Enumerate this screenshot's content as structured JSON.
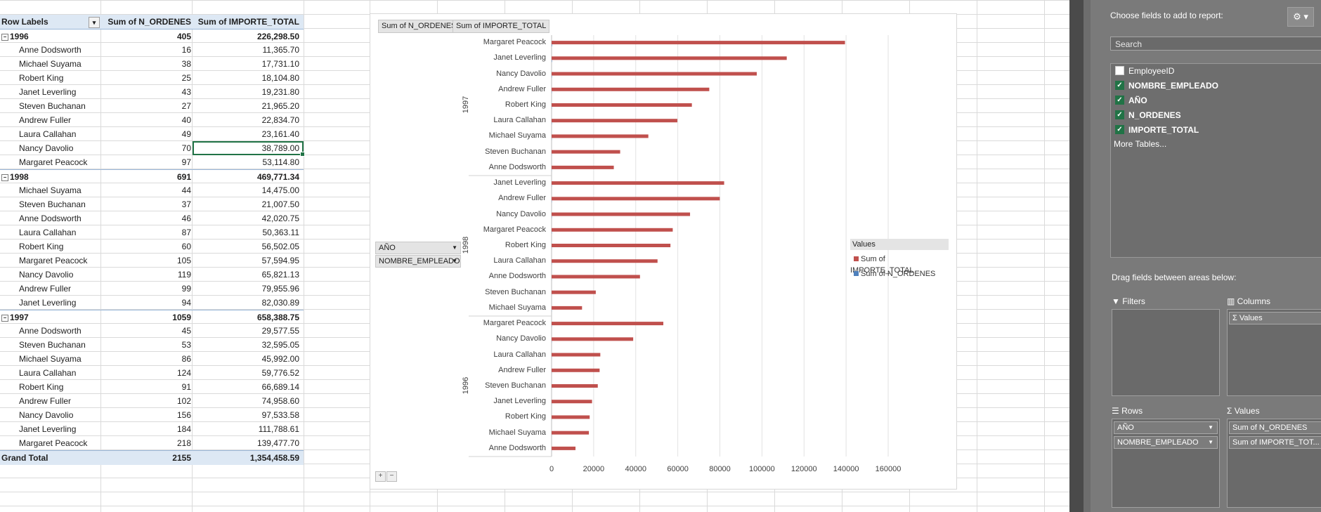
{
  "pivot": {
    "headers": {
      "row_labels": "Row Labels",
      "col1": "Sum of N_ORDENES",
      "col2": "Sum of IMPORTE_TOTAL"
    },
    "rows": [
      {
        "kind": "year",
        "label": "1996",
        "n": "405",
        "importe": "226,298.50"
      },
      {
        "kind": "item",
        "label": "Anne Dodsworth",
        "n": "16",
        "importe": "11,365.70"
      },
      {
        "kind": "item",
        "label": "Michael Suyama",
        "n": "38",
        "importe": "17,731.10"
      },
      {
        "kind": "item",
        "label": "Robert King",
        "n": "25",
        "importe": "18,104.80"
      },
      {
        "kind": "item",
        "label": "Janet Leverling",
        "n": "43",
        "importe": "19,231.80"
      },
      {
        "kind": "item",
        "label": "Steven Buchanan",
        "n": "27",
        "importe": "21,965.20"
      },
      {
        "kind": "item",
        "label": "Andrew Fuller",
        "n": "40",
        "importe": "22,834.70"
      },
      {
        "kind": "item",
        "label": "Laura Callahan",
        "n": "49",
        "importe": "23,161.40"
      },
      {
        "kind": "item",
        "label": "Nancy Davolio",
        "n": "70",
        "importe": "38,789.00"
      },
      {
        "kind": "item",
        "label": "Margaret Peacock",
        "n": "97",
        "importe": "53,114.80"
      },
      {
        "kind": "year",
        "label": "1998",
        "n": "691",
        "importe": "469,771.34"
      },
      {
        "kind": "item",
        "label": "Michael Suyama",
        "n": "44",
        "importe": "14,475.00"
      },
      {
        "kind": "item",
        "label": "Steven Buchanan",
        "n": "37",
        "importe": "21,007.50"
      },
      {
        "kind": "item",
        "label": "Anne Dodsworth",
        "n": "46",
        "importe": "42,020.75"
      },
      {
        "kind": "item",
        "label": "Laura Callahan",
        "n": "87",
        "importe": "50,363.11"
      },
      {
        "kind": "item",
        "label": "Robert King",
        "n": "60",
        "importe": "56,502.05"
      },
      {
        "kind": "item",
        "label": "Margaret Peacock",
        "n": "105",
        "importe": "57,594.95"
      },
      {
        "kind": "item",
        "label": "Nancy Davolio",
        "n": "119",
        "importe": "65,821.13"
      },
      {
        "kind": "item",
        "label": "Andrew Fuller",
        "n": "99",
        "importe": "79,955.96"
      },
      {
        "kind": "item",
        "label": "Janet Leverling",
        "n": "94",
        "importe": "82,030.89"
      },
      {
        "kind": "year",
        "label": "1997",
        "n": "1059",
        "importe": "658,388.75"
      },
      {
        "kind": "item",
        "label": "Anne Dodsworth",
        "n": "45",
        "importe": "29,577.55"
      },
      {
        "kind": "item",
        "label": "Steven Buchanan",
        "n": "53",
        "importe": "32,595.05"
      },
      {
        "kind": "item",
        "label": "Michael Suyama",
        "n": "86",
        "importe": "45,992.00"
      },
      {
        "kind": "item",
        "label": "Laura Callahan",
        "n": "124",
        "importe": "59,776.52"
      },
      {
        "kind": "item",
        "label": "Robert King",
        "n": "91",
        "importe": "66,689.14"
      },
      {
        "kind": "item",
        "label": "Andrew Fuller",
        "n": "102",
        "importe": "74,958.60"
      },
      {
        "kind": "item",
        "label": "Nancy Davolio",
        "n": "156",
        "importe": "97,533.58"
      },
      {
        "kind": "item",
        "label": "Janet Leverling",
        "n": "184",
        "importe": "111,788.61"
      },
      {
        "kind": "item",
        "label": "Margaret Peacock",
        "n": "218",
        "importe": "139,477.70"
      },
      {
        "kind": "total",
        "label": "Grand Total",
        "n": "2155",
        "importe": "1,354,458.59"
      }
    ]
  },
  "chart": {
    "field_buttons": {
      "values1": "Sum of N_ORDENES",
      "values2": "Sum of IMPORTE_TOTAL",
      "axis1": "AÑO",
      "axis2": "NOMBRE_EMPLEADO"
    },
    "legend_title": "Values",
    "zoom_plus": "+",
    "zoom_minus": "−"
  },
  "chart_data": {
    "type": "bar",
    "orientation": "horizontal",
    "groups": [
      {
        "name": "1997",
        "categories": [
          "Margaret Peacock",
          "Janet Leverling",
          "Nancy Davolio",
          "Andrew Fuller",
          "Robert King",
          "Laura Callahan",
          "Michael Suyama",
          "Steven Buchanan",
          "Anne Dodsworth"
        ],
        "importe": [
          139477.7,
          111788.61,
          97533.58,
          74958.6,
          66689.14,
          59776.52,
          45992.0,
          32595.05,
          29577.55
        ],
        "n": [
          218,
          184,
          156,
          102,
          91,
          124,
          86,
          53,
          45
        ]
      },
      {
        "name": "1998",
        "categories": [
          "Janet Leverling",
          "Andrew Fuller",
          "Nancy Davolio",
          "Margaret Peacock",
          "Robert King",
          "Laura Callahan",
          "Anne Dodsworth",
          "Steven Buchanan",
          "Michael Suyama"
        ],
        "importe": [
          82030.89,
          79955.96,
          65821.13,
          57594.95,
          56502.05,
          50363.11,
          42020.75,
          21007.5,
          14475.0
        ],
        "n": [
          94,
          99,
          119,
          105,
          60,
          87,
          46,
          37,
          44
        ]
      },
      {
        "name": "1996",
        "categories": [
          "Margaret Peacock",
          "Nancy Davolio",
          "Laura Callahan",
          "Andrew Fuller",
          "Steven Buchanan",
          "Janet Leverling",
          "Robert King",
          "Michael Suyama",
          "Anne Dodsworth"
        ],
        "importe": [
          53114.8,
          38789.0,
          23161.4,
          22834.7,
          21965.2,
          19231.8,
          18104.8,
          17731.1,
          11365.7
        ],
        "n": [
          97,
          70,
          49,
          40,
          27,
          43,
          25,
          38,
          16
        ]
      }
    ],
    "series": [
      {
        "name": "Sum of IMPORTE_TOTAL",
        "color": "#c0504d"
      },
      {
        "name": "Sum of N_ORDENES",
        "color": "#4f81bd"
      }
    ],
    "xlim": [
      0,
      160000
    ],
    "xticks": [
      "0",
      "20000",
      "40000",
      "60000",
      "80000",
      "100000",
      "120000",
      "140000",
      "160000"
    ],
    "grid": true,
    "legend_position": "right"
  },
  "pane": {
    "title": "Choose fields to add to report:",
    "search_placeholder": "Search",
    "fields": [
      {
        "label": "EmployeeID",
        "checked": false
      },
      {
        "label": "NOMBRE_EMPLEADO",
        "checked": true
      },
      {
        "label": "AÑO",
        "checked": true
      },
      {
        "label": "N_ORDENES",
        "checked": true
      },
      {
        "label": "IMPORTE_TOTAL",
        "checked": true
      }
    ],
    "more_tables": "More Tables...",
    "drag_label": "Drag fields between areas below:",
    "filters_label": "Filters",
    "columns_label": "Columns",
    "rows_label": "Rows",
    "values_label": "Values",
    "columns_items": [
      "Σ Values"
    ],
    "rows_items": [
      "AÑO",
      "NOMBRE_EMPLEADO"
    ],
    "values_items": [
      "Sum of N_ORDENES",
      "Sum of IMPORTE_TOT..."
    ]
  }
}
